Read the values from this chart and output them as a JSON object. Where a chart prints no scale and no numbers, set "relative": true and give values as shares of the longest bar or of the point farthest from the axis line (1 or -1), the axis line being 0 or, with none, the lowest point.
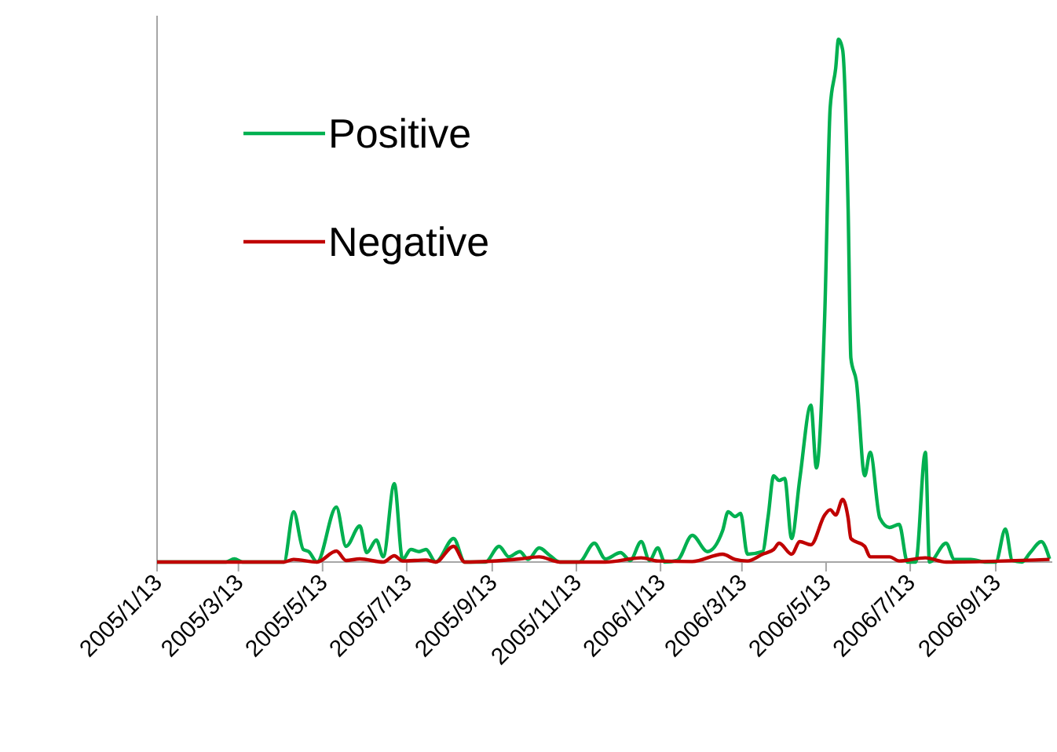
{
  "chart_data": {
    "type": "line",
    "relative": true,
    "legend": "top left",
    "xlim": [
      "2005-01-13",
      "2006-10-24"
    ],
    "xticks": [
      {
        "value": "2005-01-13",
        "label": "2005/1/13"
      },
      {
        "value": "2005-03-13",
        "label": "2005/3/13"
      },
      {
        "value": "2005-05-13",
        "label": "2005/5/13"
      },
      {
        "value": "2005-07-13",
        "label": "2005/7/13"
      },
      {
        "value": "2005-09-13",
        "label": "2005/9/13"
      },
      {
        "value": "2005-11-13",
        "label": "2005/11/13"
      },
      {
        "value": "2006-01-13",
        "label": "2006/1/13"
      },
      {
        "value": "2006-03-13",
        "label": "2006/3/13"
      },
      {
        "value": "2006-05-13",
        "label": "2006/5/13"
      },
      {
        "value": "2006-07-13",
        "label": "2006/7/13"
      },
      {
        "value": "2006-09-13",
        "label": "2006/9/13"
      }
    ],
    "series": [
      {
        "name": "Positive",
        "color": "#00b050",
        "x": [
          "2005-01-13",
          "2005-03-04",
          "2005-03-10",
          "2005-03-16",
          "2005-04-15",
          "2005-04-22",
          "2005-04-29",
          "2005-05-03",
          "2005-05-09",
          "2005-05-23",
          "2005-05-30",
          "2005-06-09",
          "2005-06-14",
          "2005-06-21",
          "2005-06-26",
          "2005-07-04",
          "2005-07-10",
          "2005-07-16",
          "2005-07-22",
          "2005-07-27",
          "2005-08-03",
          "2005-08-16",
          "2005-08-24",
          "2005-09-08",
          "2005-09-18",
          "2005-09-25",
          "2005-10-03",
          "2005-10-09",
          "2005-10-17",
          "2005-10-25",
          "2005-11-01",
          "2005-11-15",
          "2005-11-26",
          "2005-12-04",
          "2005-12-15",
          "2005-12-22",
          "2005-12-30",
          "2006-01-05",
          "2006-01-11",
          "2006-01-16",
          "2006-01-25",
          "2006-02-05",
          "2006-02-16",
          "2006-02-27",
          "2006-03-03",
          "2006-03-08",
          "2006-03-12",
          "2006-03-17",
          "2006-03-28",
          "2006-04-01",
          "2006-04-05",
          "2006-04-09",
          "2006-04-13",
          "2006-04-18",
          "2006-04-24",
          "2006-05-02",
          "2006-05-06",
          "2006-05-12",
          "2006-05-16",
          "2006-05-20",
          "2006-05-22",
          "2006-05-25",
          "2006-05-29",
          "2006-05-31",
          "2006-06-04",
          "2006-06-10",
          "2006-06-14",
          "2006-06-21",
          "2006-06-28",
          "2006-07-05",
          "2006-07-11",
          "2006-07-17",
          "2006-07-24",
          "2006-07-27",
          "2006-08-08",
          "2006-08-14",
          "2006-08-26",
          "2006-09-06",
          "2006-09-13",
          "2006-09-20",
          "2006-09-25",
          "2006-10-02",
          "2006-10-08",
          "2006-10-16",
          "2006-10-22"
        ],
        "values": [
          0,
          0,
          0.006,
          0,
          0,
          0.096,
          0.024,
          0.02,
          0,
          0.105,
          0.03,
          0.069,
          0.018,
          0.042,
          0.01,
          0.15,
          0.005,
          0.024,
          0.02,
          0.024,
          0,
          0.045,
          0,
          0,
          0.03,
          0.01,
          0.02,
          0.005,
          0.027,
          0.012,
          0,
          0,
          0.036,
          0.006,
          0.018,
          0.003,
          0.039,
          0.003,
          0.027,
          0,
          0.003,
          0.051,
          0.02,
          0.06,
          0.096,
          0.087,
          0.093,
          0.015,
          0.02,
          0.087,
          0.165,
          0.156,
          0.16,
          0.045,
          0.16,
          0.3,
          0.18,
          0.47,
          0.87,
          0.945,
          1,
          0.98,
          0.675,
          0.39,
          0.345,
          0.165,
          0.21,
          0.084,
          0.066,
          0.072,
          0,
          0,
          0.21,
          0,
          0.036,
          0.005,
          0.005,
          0,
          0,
          0.063,
          0.003,
          0,
          0.018,
          0.039,
          0.006
        ]
      },
      {
        "name": "Negative",
        "color": "#c00000",
        "x": [
          "2005-01-13",
          "2005-04-15",
          "2005-04-22",
          "2005-05-09",
          "2005-05-23",
          "2005-05-30",
          "2005-06-09",
          "2005-06-26",
          "2005-07-04",
          "2005-07-10",
          "2005-07-27",
          "2005-08-03",
          "2005-08-16",
          "2005-08-24",
          "2005-10-03",
          "2005-10-17",
          "2005-11-01",
          "2005-12-04",
          "2005-12-30",
          "2006-01-11",
          "2006-02-05",
          "2006-02-27",
          "2006-03-08",
          "2006-03-17",
          "2006-03-28",
          "2006-04-05",
          "2006-04-09",
          "2006-04-18",
          "2006-04-24",
          "2006-05-02",
          "2006-05-12",
          "2006-05-16",
          "2006-05-20",
          "2006-05-25",
          "2006-05-29",
          "2006-05-31",
          "2006-06-10",
          "2006-06-14",
          "2006-06-28",
          "2006-07-05",
          "2006-07-24",
          "2006-08-08",
          "2006-10-22"
        ],
        "values": [
          0,
          0,
          0.005,
          0,
          0.021,
          0.003,
          0.006,
          0,
          0.012,
          0.002,
          0.004,
          0,
          0.03,
          0,
          0.006,
          0.01,
          0,
          0,
          0.008,
          0.002,
          0.001,
          0.015,
          0.005,
          0.002,
          0.015,
          0.024,
          0.036,
          0.015,
          0.039,
          0.033,
          0.09,
          0.1,
          0.09,
          0.12,
          0.084,
          0.045,
          0.03,
          0.01,
          0.01,
          0.002,
          0.008,
          0,
          0.005
        ]
      }
    ]
  }
}
